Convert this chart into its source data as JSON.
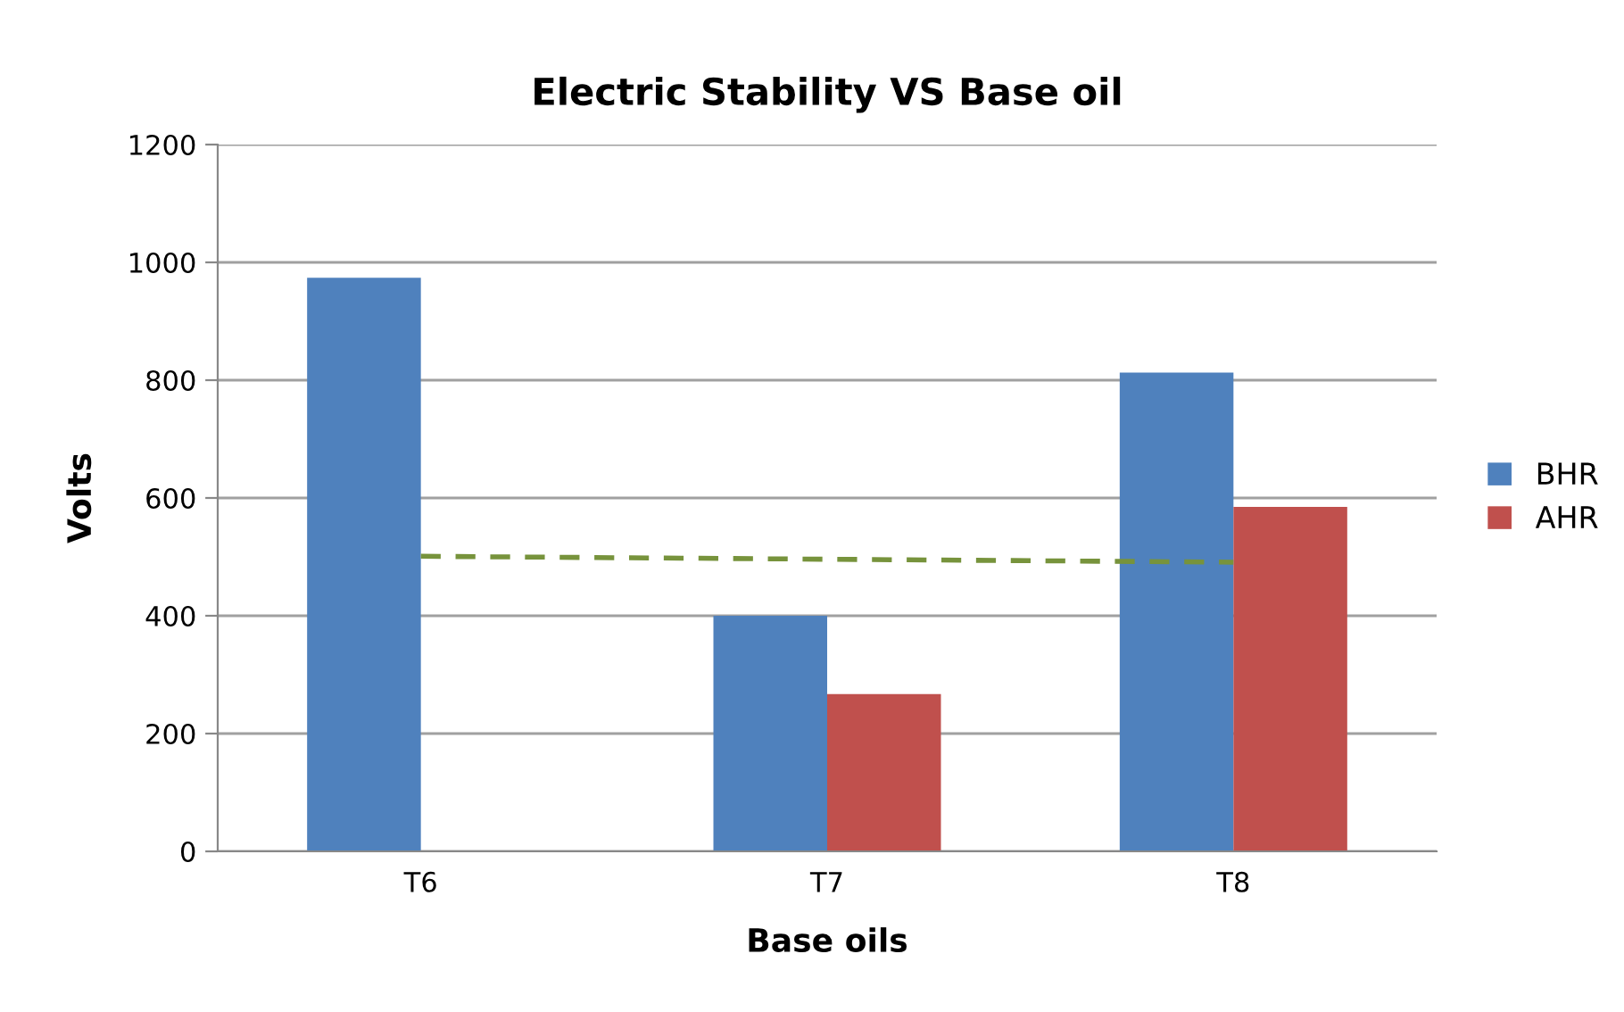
{
  "chart_data": {
    "type": "bar",
    "title": "Electric Stability VS Base oil",
    "xlabel": "Base oils",
    "ylabel": "Volts",
    "categories": [
      "T6",
      "T7",
      "T8"
    ],
    "series": [
      {
        "name": "BHR",
        "color": "#4f81bd",
        "values": [
          974,
          400,
          813
        ]
      },
      {
        "name": "AHR",
        "color": "#c0504d",
        "values": [
          null,
          267,
          585
        ]
      },
      {
        "type": "line",
        "color": "#77933c",
        "line_style": "dashed",
        "values": [
          501,
          496,
          491
        ]
      }
    ],
    "ylim": [
      0,
      1200
    ],
    "yticks": [
      0,
      200,
      400,
      600,
      800,
      1000,
      1200
    ],
    "grid": "y",
    "legend": "right"
  }
}
